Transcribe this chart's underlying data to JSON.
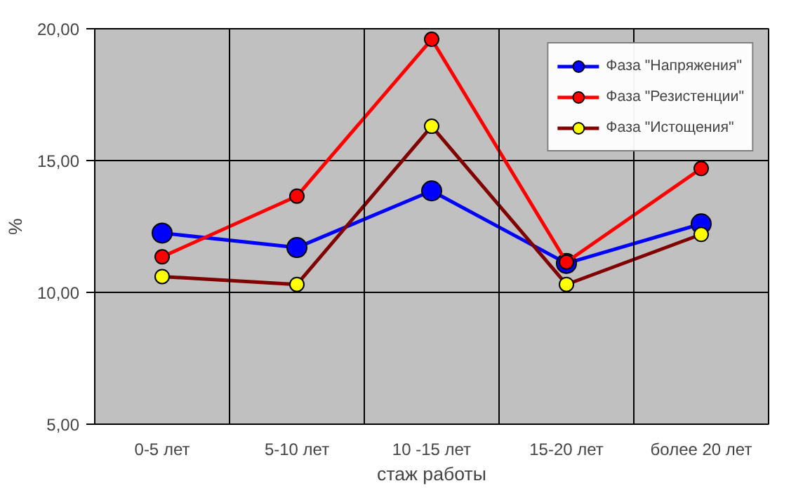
{
  "chart_data": {
    "type": "line",
    "xlabel": "стаж работы",
    "ylabel": "%",
    "categories": [
      "0-5 лет",
      "5-10 лет",
      "10 -15 лет",
      "15-20 лет",
      "более 20 лет"
    ],
    "ylim": [
      5,
      20
    ],
    "yticks": [
      {
        "value": 5,
        "label": "5,00"
      },
      {
        "value": 10,
        "label": "10,00"
      },
      {
        "value": 15,
        "label": "15,00"
      },
      {
        "value": 20,
        "label": "20,00"
      }
    ],
    "grid": true,
    "legend": "top right",
    "marker": "circle",
    "line_style": "solid",
    "series": [
      {
        "name": "Фаза \"Напряжения\"",
        "color": "#0000ff",
        "colors": [
          "#0000ff",
          "#0000ff",
          "#0000ff",
          "#0000ff",
          "#0000ff"
        ],
        "values": [
          12.25,
          11.7,
          13.85,
          11.1,
          12.6
        ]
      },
      {
        "name": "Фаза \"Резистенции\"",
        "color": "#ff0000",
        "colors": [
          "#ff0000",
          "#ff0000",
          "#ff0000",
          "#ff0000",
          "#ff0000"
        ],
        "values": [
          11.35,
          13.65,
          19.6,
          11.15,
          14.7
        ]
      },
      {
        "name": "Фаза \"Истощения\"",
        "color": "#800000",
        "colors": [
          "#ffff00",
          "#ffff00",
          "#ffff00",
          "#ffff00",
          "#ffff00"
        ],
        "values": [
          10.6,
          10.3,
          16.3,
          10.3,
          12.2
        ]
      }
    ]
  }
}
